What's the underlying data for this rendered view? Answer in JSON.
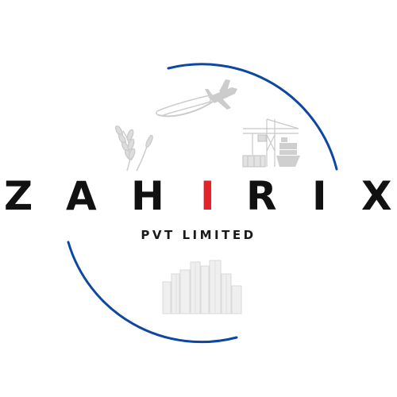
{
  "logo": {
    "brand_letters": [
      "Z",
      "A",
      "H",
      "I",
      "R",
      "I",
      "X"
    ],
    "tagline": "PVT LIMITED",
    "colors": {
      "ring": "#0d47a1",
      "text": "#111111",
      "accent": "#e32229",
      "watermark_icons": "#cccccc"
    },
    "watermark_icons": [
      "airplane-icon",
      "wheat-icon",
      "port-crane-icon",
      "cargo-ship-icon",
      "city-buildings-icon"
    ]
  }
}
